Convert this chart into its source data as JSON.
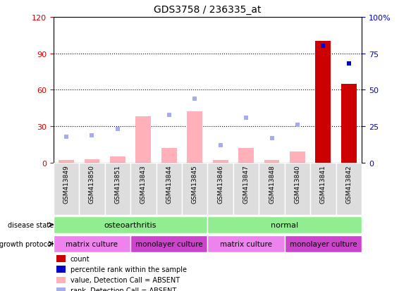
{
  "title": "GDS3758 / 236335_at",
  "samples": [
    "GSM413849",
    "GSM413850",
    "GSM413851",
    "GSM413843",
    "GSM413844",
    "GSM413845",
    "GSM413846",
    "GSM413847",
    "GSM413848",
    "GSM413840",
    "GSM413841",
    "GSM413842"
  ],
  "left_ylim": [
    0,
    120
  ],
  "right_ylim": [
    0,
    100
  ],
  "left_yticks": [
    0,
    30,
    60,
    90,
    120
  ],
  "right_yticks": [
    0,
    25,
    50,
    75,
    100
  ],
  "left_ytick_labels": [
    "0",
    "30",
    "60",
    "90",
    "120"
  ],
  "right_ytick_labels": [
    "0",
    "25",
    "50",
    "75",
    "100%"
  ],
  "pink_bar_heights": [
    2,
    3,
    5,
    38,
    12,
    42,
    2,
    12,
    2,
    9,
    0,
    0
  ],
  "red_bar_heights": [
    0,
    0,
    0,
    0,
    0,
    0,
    0,
    0,
    0,
    0,
    100,
    65
  ],
  "blue_square_y_right": [
    null,
    null,
    null,
    null,
    null,
    null,
    null,
    null,
    null,
    null,
    80,
    68
  ],
  "light_blue_square_y_right": [
    18,
    19,
    23,
    null,
    33,
    44,
    12,
    31,
    17,
    26,
    null,
    null
  ],
  "pink_bar_color": "#ffb0b8",
  "red_bar_color": "#cc0000",
  "blue_square_color": "#0000cc",
  "light_blue_square_color": "#aaaaee",
  "bg_color": "#ffffff",
  "left_label_color": "#cc0000",
  "right_label_color": "#0000cc",
  "disease_state_groups": [
    {
      "label": "osteoarthritis",
      "start": 0,
      "end": 5,
      "color": "#90ee90"
    },
    {
      "label": "normal",
      "start": 6,
      "end": 11,
      "color": "#90ee90"
    }
  ],
  "growth_protocol_groups": [
    {
      "label": "matrix culture",
      "start": 0,
      "end": 2,
      "color": "#ee82ee"
    },
    {
      "label": "monolayer culture",
      "start": 3,
      "end": 5,
      "color": "#cc44cc"
    },
    {
      "label": "matrix culture",
      "start": 6,
      "end": 8,
      "color": "#ee82ee"
    },
    {
      "label": "monolayer culture",
      "start": 9,
      "end": 11,
      "color": "#cc44cc"
    }
  ],
  "legend_items": [
    {
      "color": "#cc0000",
      "label": "count"
    },
    {
      "color": "#0000cc",
      "label": "percentile rank within the sample"
    },
    {
      "color": "#ffb0b8",
      "label": "value, Detection Call = ABSENT"
    },
    {
      "color": "#aaaaee",
      "label": "rank, Detection Call = ABSENT"
    }
  ]
}
